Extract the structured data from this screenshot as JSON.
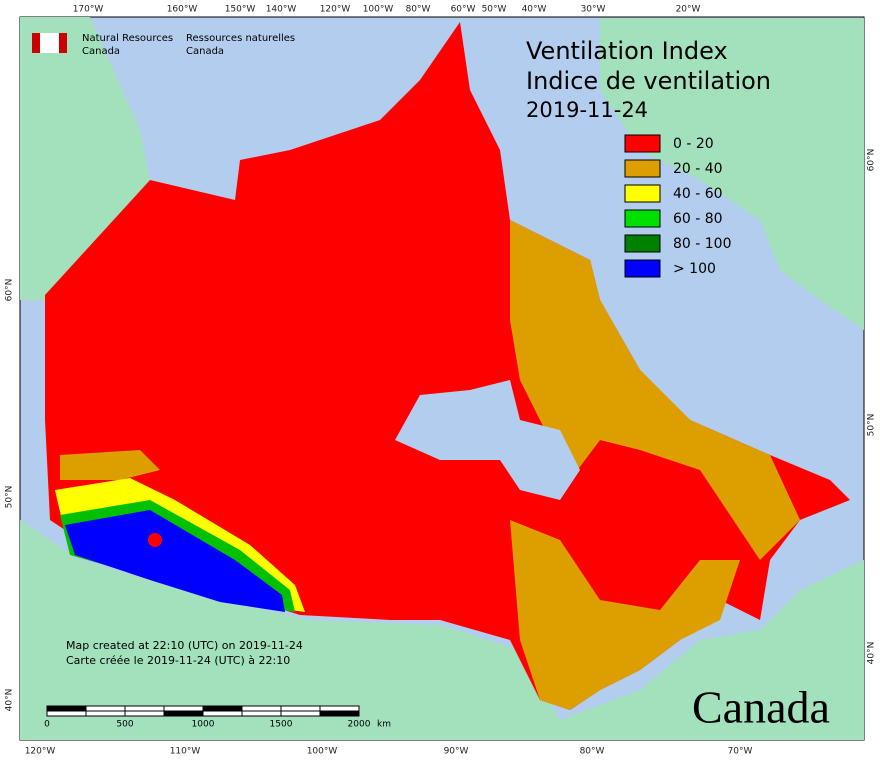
{
  "header": {
    "agency_en": [
      "Natural Resources",
      "Canada"
    ],
    "agency_fr": [
      "Ressources naturelles",
      "Canada"
    ]
  },
  "title": [
    "Ventilation Index",
    "Indice de ventilation",
    "2019-11-24"
  ],
  "legend": [
    {
      "label": "0 - 20",
      "color": "#ff0000"
    },
    {
      "label": "20 - 40",
      "color": "#dd9f00"
    },
    {
      "label": "40 - 60",
      "color": "#ffff00"
    },
    {
      "label": "60 - 80",
      "color": "#00e000"
    },
    {
      "label": "80 - 100",
      "color": "#008000"
    },
    {
      "label": "> 100",
      "color": "#0000ff"
    }
  ],
  "top_axis": [
    "170°W",
    "160°W",
    "150°W",
    "140°W",
    "120°W",
    "100°W",
    "80°W",
    "60°W",
    "50°W",
    "40°W",
    "30°W",
    "20°W"
  ],
  "bottom_axis": [
    "120°W",
    "110°W",
    "100°W",
    "90°W",
    "80°W",
    "70°W"
  ],
  "left_axis": [
    "60°N",
    "50°N",
    "40°N"
  ],
  "right_axis": [
    "60°N",
    "50°N",
    "40°N"
  ],
  "footer": [
    "Map created at 22:10 (UTC) on 2019-11-24",
    "Carte créée le 2019-11-24 (UTC) à 22:10"
  ],
  "scale": {
    "labels": [
      "0",
      "500",
      "1000",
      "1500",
      "2000"
    ],
    "unit": "km"
  },
  "wordmark": "Canada"
}
